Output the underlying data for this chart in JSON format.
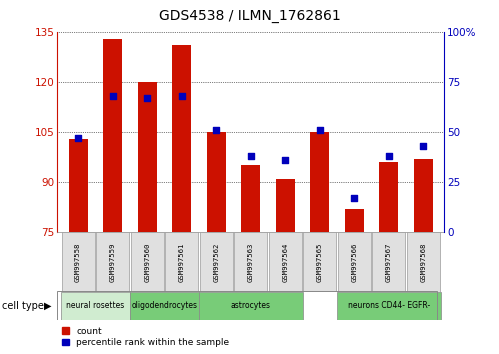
{
  "title": "GDS4538 / ILMN_1762861",
  "samples": [
    "GSM997558",
    "GSM997559",
    "GSM997560",
    "GSM997561",
    "GSM997562",
    "GSM997563",
    "GSM997564",
    "GSM997565",
    "GSM997566",
    "GSM997567",
    "GSM997568"
  ],
  "counts": [
    103,
    133,
    120,
    131,
    105,
    95,
    91,
    105,
    82,
    96,
    97
  ],
  "percentile_ranks": [
    47,
    68,
    67,
    68,
    51,
    38,
    36,
    51,
    17,
    38,
    43
  ],
  "ylim_left": [
    75,
    135
  ],
  "ylim_right": [
    0,
    100
  ],
  "yticks_left": [
    75,
    90,
    105,
    120,
    135
  ],
  "yticks_right": [
    0,
    25,
    50,
    75,
    100
  ],
  "bar_color": "#cc1100",
  "dot_color": "#0000bb",
  "bar_width": 0.55,
  "bg_color": "#ffffff",
  "plot_bg": "#ffffff",
  "grid_color": "#000000",
  "left_label_color": "#cc1100",
  "right_label_color": "#0000bb",
  "cell_type_label": "cell type",
  "legend_count": "count",
  "legend_pct": "percentile rank within the sample",
  "cell_type_spans": [
    {
      "label": "neural rosettes",
      "color": "#d8f0d8",
      "start": 0,
      "end": 1
    },
    {
      "label": "oligodendrocytes",
      "color": "#80d080",
      "start": 1,
      "end": 3
    },
    {
      "label": "astrocytes",
      "color": "#80d080",
      "start": 3,
      "end": 6
    },
    {
      "label": "",
      "color": "#d8f0d8",
      "start": 6,
      "end": 6
    },
    {
      "label": "neurons CD44- EGFR-",
      "color": "#80d080",
      "start": 7,
      "end": 10
    }
  ]
}
